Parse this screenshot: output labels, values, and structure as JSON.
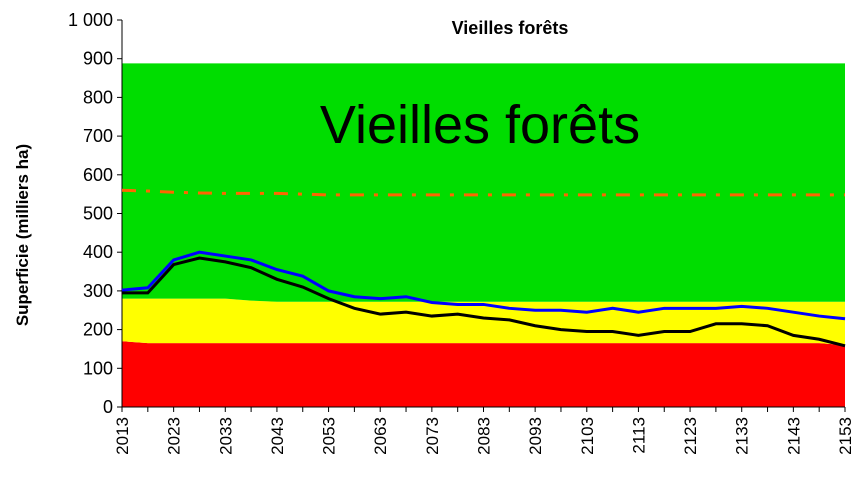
{
  "chart_data": {
    "type": "line",
    "title": "Vieilles forêts",
    "annotation": "Vieilles forêts",
    "y_label": "Superficie (milliers ha)",
    "categories": [
      "2013",
      null,
      "2023",
      null,
      "2033",
      null,
      "2043",
      null,
      "2053",
      null,
      "2063",
      null,
      "2073",
      null,
      "2083",
      null,
      "2093",
      null,
      "2103",
      null,
      "2113",
      null,
      "2123",
      null,
      "2133",
      null,
      "2143",
      null,
      "2153"
    ],
    "ylim": [
      0,
      1000
    ],
    "yticks": [
      0,
      100,
      200,
      300,
      400,
      500,
      600,
      700,
      800,
      900,
      {
        "value": 1000,
        "label": "1 000"
      }
    ],
    "stacked_areas": [
      {
        "color": "#ff0000",
        "values": [
          170,
          165,
          165,
          165,
          165,
          165,
          165,
          165,
          165,
          165,
          165,
          165,
          165,
          165,
          165,
          165,
          165,
          165,
          165,
          165,
          165,
          165,
          165,
          165,
          165,
          165,
          165,
          165,
          160
        ]
      },
      {
        "color": "#ffff00",
        "values": [
          110,
          115,
          115,
          115,
          115,
          110,
          107,
          107,
          107,
          107,
          107,
          107,
          107,
          107,
          107,
          107,
          107,
          107,
          107,
          107,
          107,
          107,
          107,
          107,
          107,
          107,
          107,
          107,
          112
        ]
      },
      {
        "color": "#00dd00",
        "values": [
          608,
          608,
          608,
          608,
          608,
          613,
          616,
          616,
          616,
          616,
          616,
          616,
          616,
          616,
          616,
          616,
          616,
          616,
          616,
          616,
          616,
          616,
          616,
          616,
          616,
          616,
          616,
          616,
          616
        ]
      }
    ],
    "series": [
      {
        "color": "#ff6600",
        "dash": "dashdot",
        "values": [
          560,
          558,
          555,
          553,
          552,
          552,
          552,
          550,
          548,
          548,
          548,
          548,
          548,
          548,
          548,
          548,
          548,
          548,
          548,
          548,
          548,
          548,
          548,
          548,
          548,
          548,
          548,
          548,
          548
        ]
      },
      {
        "color": "#0000ff",
        "dash": "solid",
        "values": [
          302,
          308,
          380,
          400,
          390,
          380,
          355,
          338,
          300,
          285,
          280,
          285,
          270,
          265,
          265,
          255,
          250,
          250,
          245,
          255,
          245,
          255,
          255,
          255,
          260,
          255,
          245,
          235,
          228
        ]
      },
      {
        "color": "#000000",
        "dash": "solid",
        "values": [
          295,
          295,
          368,
          385,
          375,
          360,
          330,
          310,
          280,
          255,
          240,
          245,
          235,
          240,
          230,
          225,
          210,
          200,
          195,
          195,
          185,
          195,
          195,
          215,
          215,
          210,
          185,
          175,
          158
        ]
      }
    ]
  }
}
